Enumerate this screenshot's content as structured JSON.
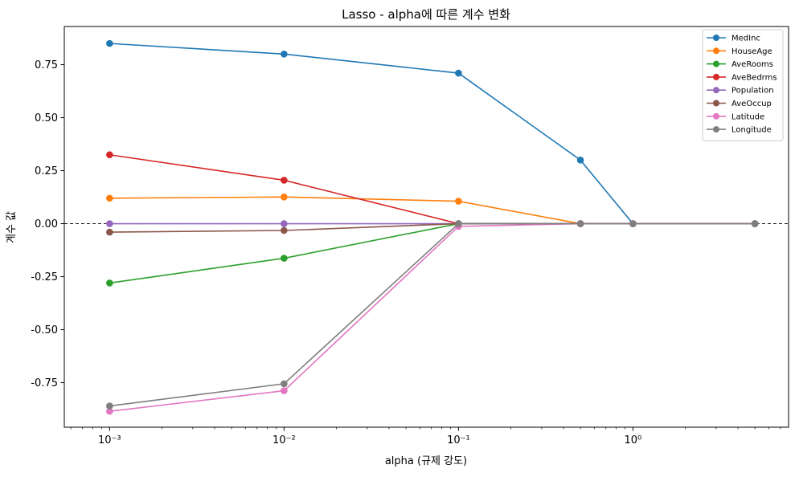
{
  "chart_data": {
    "type": "line",
    "title": "Lasso - alpha에 따른 계수 변화",
    "xlabel": "alpha (규제 강도)",
    "ylabel": "계수 값",
    "x_scale": "log",
    "xlim": [
      0.00055,
      7.8
    ],
    "ylim": [
      -0.96,
      0.93
    ],
    "x": [
      0.001,
      0.01,
      0.1,
      0.5,
      1.0,
      5.0
    ],
    "x_ticks": [
      {
        "value": 0.001,
        "label": "10⁻³"
      },
      {
        "value": 0.01,
        "label": "10⁻²"
      },
      {
        "value": 0.1,
        "label": "10⁻¹"
      },
      {
        "value": 1,
        "label": "10⁰"
      }
    ],
    "y_ticks": [
      {
        "value": 0.75,
        "label": "0.75"
      },
      {
        "value": 0.5,
        "label": "0.50"
      },
      {
        "value": 0.25,
        "label": "0.25"
      },
      {
        "value": 0.0,
        "label": "0.00"
      },
      {
        "value": -0.25,
        "label": "-0.25"
      },
      {
        "value": -0.5,
        "label": "-0.50"
      },
      {
        "value": -0.75,
        "label": "-0.75"
      }
    ],
    "reference_line": 0,
    "legend_position": "top-right",
    "series": [
      {
        "name": "MedInc",
        "color": "#1f77b4",
        "values": [
          0.85,
          0.8,
          0.71,
          0.3,
          0.0,
          0.0
        ]
      },
      {
        "name": "HouseAge",
        "color": "#ff7f0e",
        "values": [
          0.12,
          0.126,
          0.106,
          0.0,
          0.0,
          0.0
        ]
      },
      {
        "name": "AveRooms",
        "color": "#2ca02c",
        "values": [
          -0.28,
          -0.163,
          0.0,
          0.0,
          0.0,
          0.0
        ]
      },
      {
        "name": "AveBedrms",
        "color": "#d62728",
        "values": [
          0.325,
          0.205,
          0.0,
          0.0,
          0.0,
          0.0
        ]
      },
      {
        "name": "Population",
        "color": "#9467bd",
        "values": [
          0.0,
          0.0,
          0.0,
          0.0,
          0.0,
          0.0
        ]
      },
      {
        "name": "AveOccup",
        "color": "#8c564b",
        "values": [
          -0.04,
          -0.032,
          0.0,
          0.0,
          0.0,
          0.0
        ]
      },
      {
        "name": "Latitude",
        "color": "#e377c2",
        "values": [
          -0.885,
          -0.788,
          -0.013,
          0.0,
          0.0,
          0.0
        ]
      },
      {
        "name": "Longitude",
        "color": "#7f7f7f",
        "values": [
          -0.86,
          -0.755,
          0.0,
          0.0,
          0.0,
          0.0
        ]
      }
    ]
  }
}
